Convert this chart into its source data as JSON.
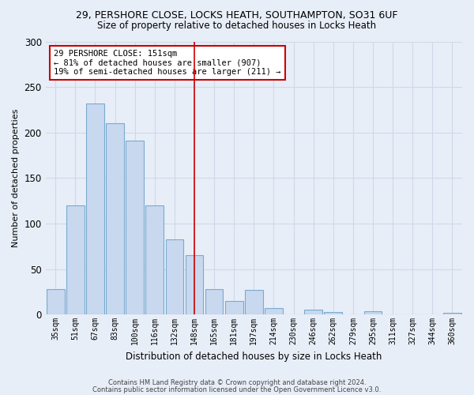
{
  "title": "29, PERSHORE CLOSE, LOCKS HEATH, SOUTHAMPTON, SO31 6UF",
  "subtitle": "Size of property relative to detached houses in Locks Heath",
  "xlabel": "Distribution of detached houses by size in Locks Heath",
  "ylabel": "Number of detached properties",
  "bar_labels": [
    "35sqm",
    "51sqm",
    "67sqm",
    "83sqm",
    "100sqm",
    "116sqm",
    "132sqm",
    "148sqm",
    "165sqm",
    "181sqm",
    "197sqm",
    "214sqm",
    "230sqm",
    "246sqm",
    "262sqm",
    "279sqm",
    "295sqm",
    "311sqm",
    "327sqm",
    "344sqm",
    "360sqm"
  ],
  "bar_values": [
    28,
    120,
    232,
    210,
    191,
    120,
    83,
    65,
    28,
    15,
    27,
    7,
    0,
    5,
    3,
    0,
    4,
    0,
    0,
    0,
    2
  ],
  "bar_facecolor": "#c8d8ee",
  "bar_edgecolor": "#7aaad0",
  "vline_x_index": 7,
  "vline_color": "#cc0000",
  "annotation_text": "29 PERSHORE CLOSE: 151sqm\n← 81% of detached houses are smaller (907)\n19% of semi-detached houses are larger (211) →",
  "annotation_box_edgecolor": "#cc0000",
  "annotation_box_facecolor": "#ffffff",
  "ylim": [
    0,
    300
  ],
  "yticks": [
    0,
    50,
    100,
    150,
    200,
    250,
    300
  ],
  "footer_line1": "Contains HM Land Registry data © Crown copyright and database right 2024.",
  "footer_line2": "Contains public sector information licensed under the Open Government Licence v3.0.",
  "background_color": "#e8eef8",
  "grid_color": "#d0d8e8",
  "title_fontsize": 9,
  "subtitle_fontsize": 8.5,
  "ylabel_fontsize": 8,
  "xlabel_fontsize": 8.5
}
